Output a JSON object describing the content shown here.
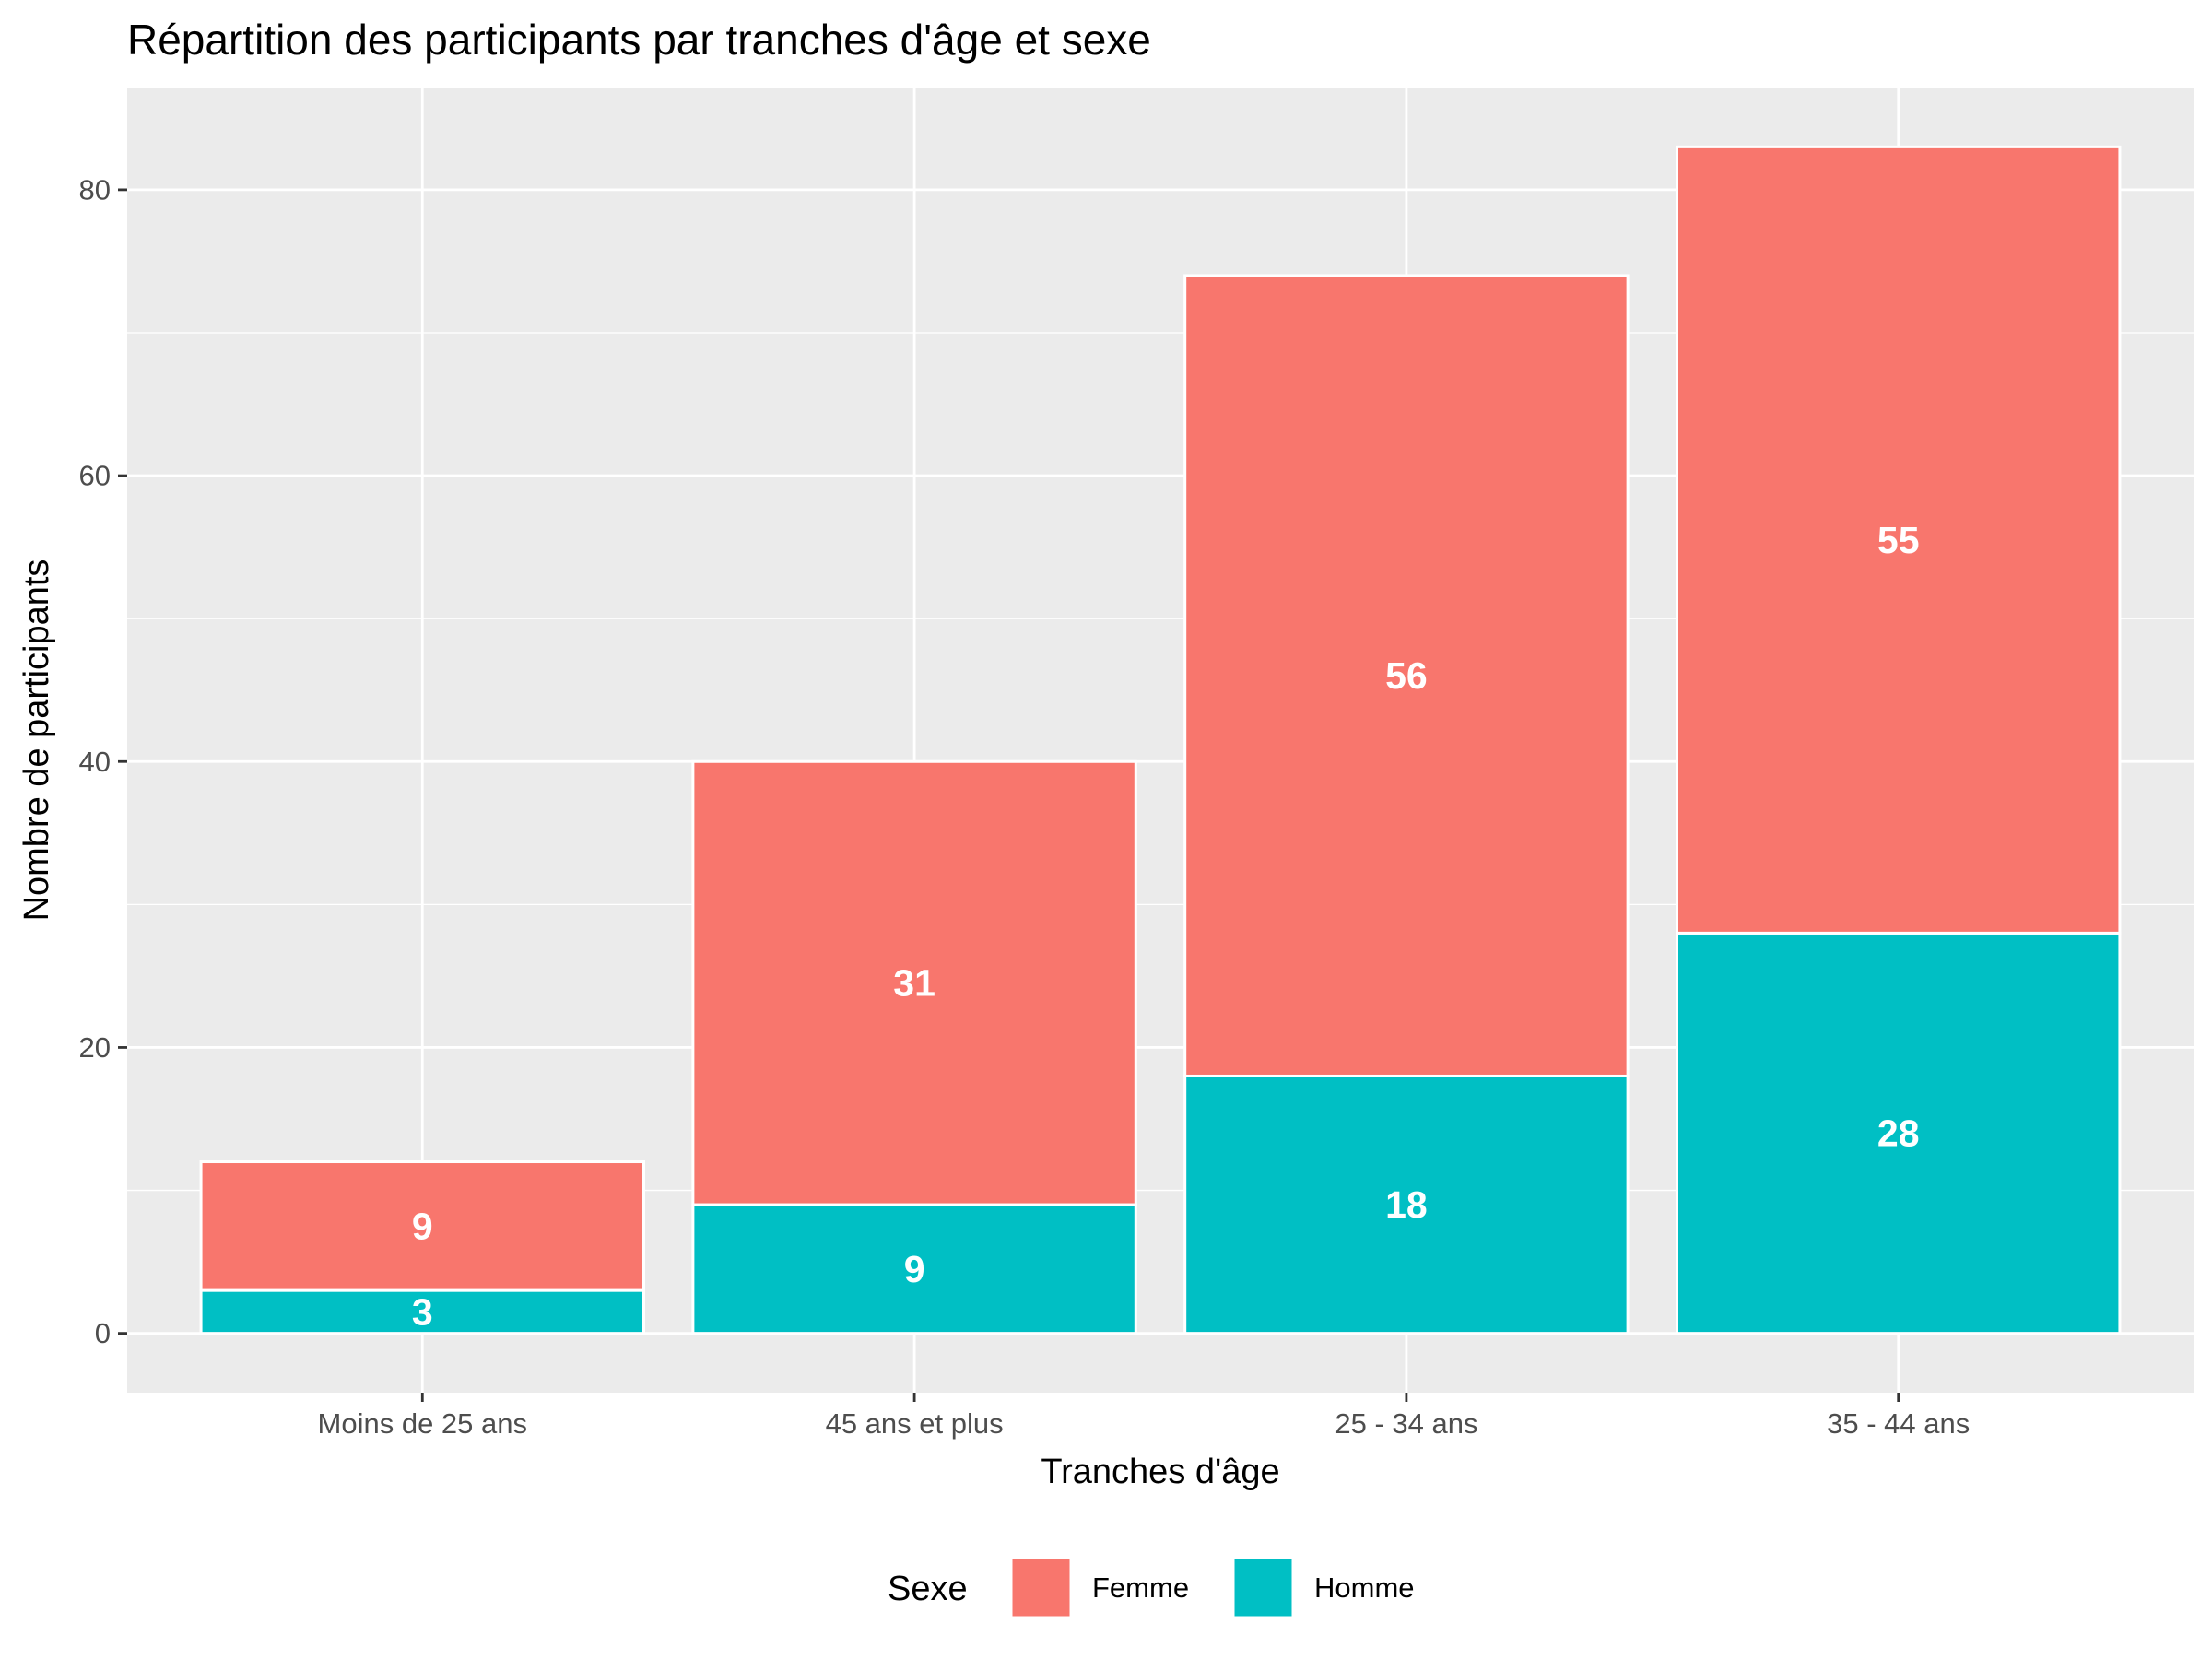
{
  "chart_data": {
    "type": "bar",
    "stacked": true,
    "title": "Répartition des participants par tranches d'âge et sexe",
    "xlabel": "Tranches d'âge",
    "ylabel": "Nombre de participants",
    "categories": [
      "Moins de 25 ans",
      "45 ans et plus",
      "25 - 34 ans",
      "35 - 44 ans"
    ],
    "series": [
      {
        "name": "Homme",
        "values": [
          3,
          9,
          18,
          28
        ],
        "color": "#00BFC4"
      },
      {
        "name": "Femme",
        "values": [
          9,
          31,
          56,
          55
        ],
        "color": "#F8766D"
      }
    ],
    "ylim": [
      -4.15,
      87.15
    ],
    "yticks": [
      0,
      20,
      40,
      60,
      80
    ],
    "grid": true,
    "legend": {
      "title": "Sexe",
      "position": "bottom",
      "order": [
        "Femme",
        "Homme"
      ]
    },
    "panel_background": "#EBEBEB"
  }
}
